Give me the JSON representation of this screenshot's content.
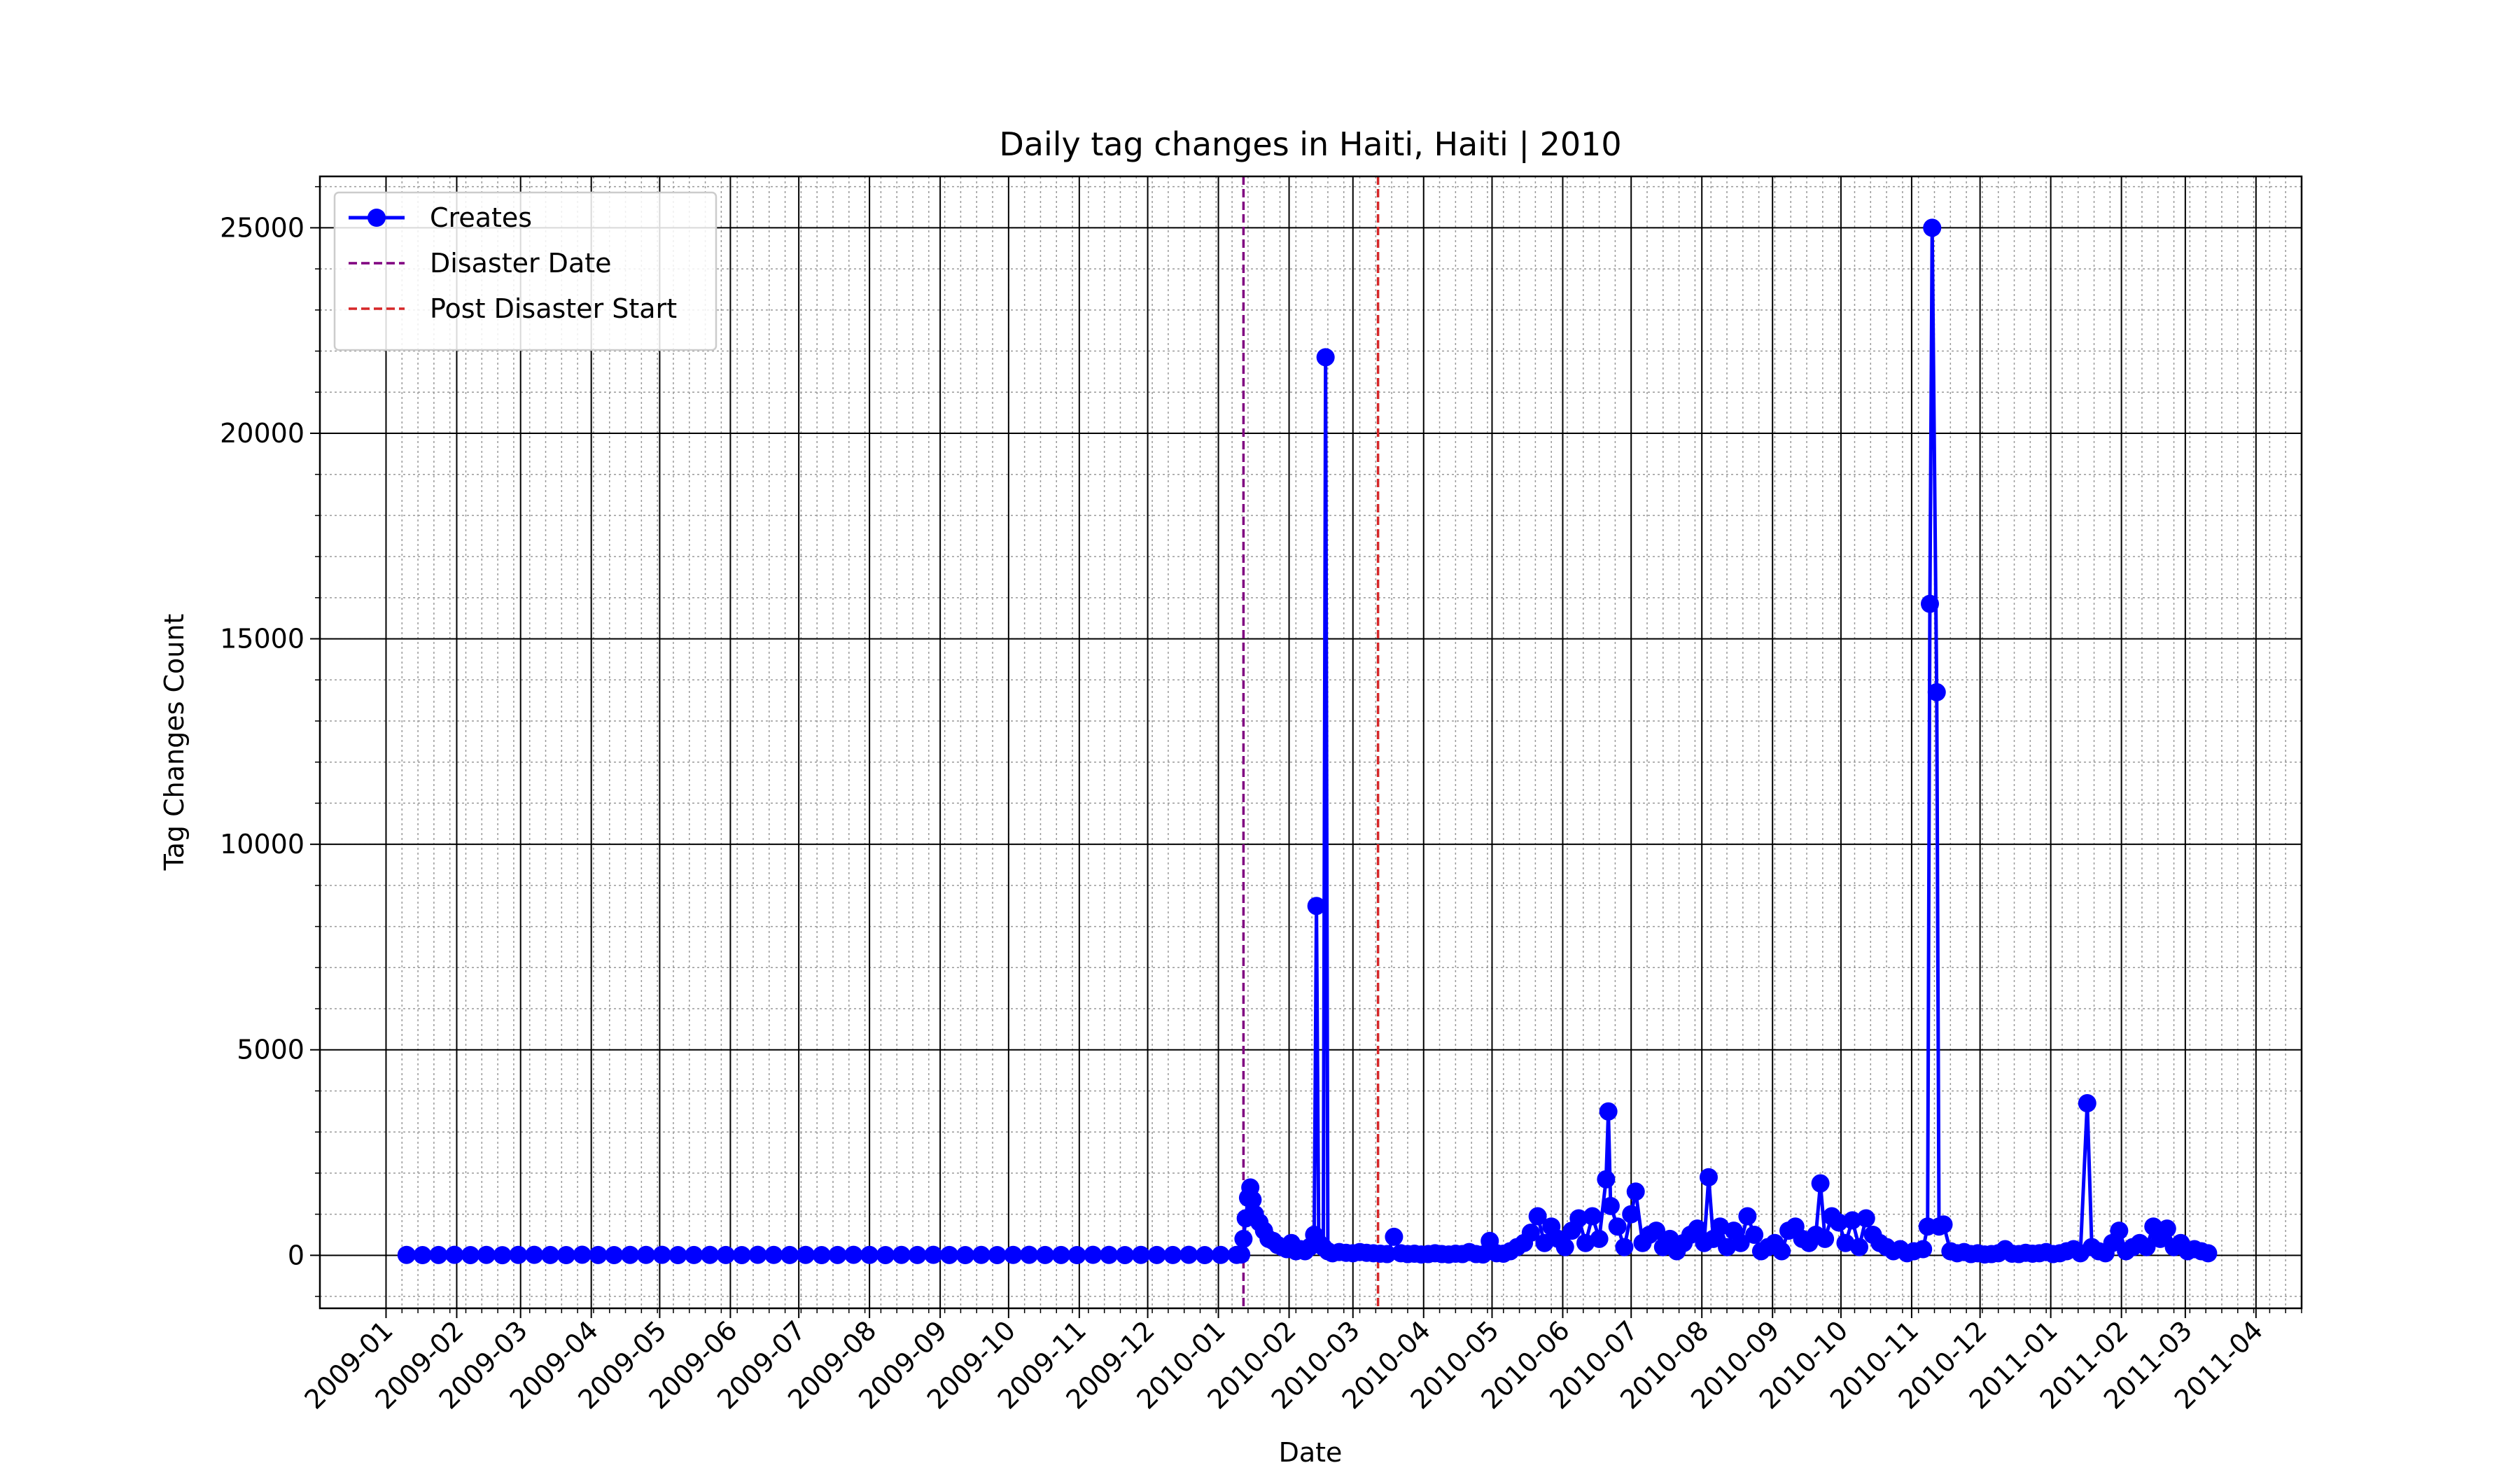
{
  "chart_data": {
    "type": "line",
    "title": "Daily tag changes in Haiti, Haiti | 2010",
    "x_label": "Date",
    "y_label": "Tag Changes Count",
    "x": [
      "2009-01-10",
      "2009-01-17",
      "2009-01-24",
      "2009-01-31",
      "2009-02-07",
      "2009-02-14",
      "2009-02-21",
      "2009-02-28",
      "2009-03-07",
      "2009-03-14",
      "2009-03-21",
      "2009-03-28",
      "2009-04-04",
      "2009-04-11",
      "2009-04-18",
      "2009-04-25",
      "2009-05-02",
      "2009-05-09",
      "2009-05-16",
      "2009-05-23",
      "2009-05-30",
      "2009-06-06",
      "2009-06-13",
      "2009-06-20",
      "2009-06-27",
      "2009-07-04",
      "2009-07-11",
      "2009-07-18",
      "2009-07-25",
      "2009-08-01",
      "2009-08-08",
      "2009-08-15",
      "2009-08-22",
      "2009-08-29",
      "2009-09-05",
      "2009-09-12",
      "2009-09-19",
      "2009-09-26",
      "2009-10-03",
      "2009-10-10",
      "2009-10-17",
      "2009-10-24",
      "2009-10-31",
      "2009-11-07",
      "2009-11-14",
      "2009-11-21",
      "2009-11-28",
      "2009-12-05",
      "2009-12-12",
      "2009-12-19",
      "2009-12-26",
      "2010-01-02",
      "2010-01-09",
      "2010-01-11",
      "2010-01-12",
      "2010-01-13",
      "2010-01-14",
      "2010-01-15",
      "2010-01-16",
      "2010-01-17",
      "2010-01-19",
      "2010-01-21",
      "2010-01-23",
      "2010-01-25",
      "2010-01-27",
      "2010-01-29",
      "2010-01-31",
      "2010-02-02",
      "2010-02-04",
      "2010-02-06",
      "2010-02-08",
      "2010-02-10",
      "2010-02-12",
      "2010-02-13",
      "2010-02-14",
      "2010-02-16",
      "2010-02-17",
      "2010-02-18",
      "2010-02-20",
      "2010-02-23",
      "2010-02-26",
      "2010-03-01",
      "2010-03-04",
      "2010-03-07",
      "2010-03-10",
      "2010-03-13",
      "2010-03-16",
      "2010-03-19",
      "2010-03-22",
      "2010-03-25",
      "2010-03-28",
      "2010-03-31",
      "2010-04-03",
      "2010-04-06",
      "2010-04-09",
      "2010-04-12",
      "2010-04-15",
      "2010-04-18",
      "2010-04-21",
      "2010-04-24",
      "2010-04-27",
      "2010-04-30",
      "2010-05-03",
      "2010-05-06",
      "2010-05-09",
      "2010-05-12",
      "2010-05-15",
      "2010-05-18",
      "2010-05-21",
      "2010-05-24",
      "2010-05-27",
      "2010-05-30",
      "2010-06-02",
      "2010-06-05",
      "2010-06-08",
      "2010-06-11",
      "2010-06-14",
      "2010-06-17",
      "2010-06-20",
      "2010-06-21",
      "2010-06-22",
      "2010-06-25",
      "2010-06-28",
      "2010-07-01",
      "2010-07-03",
      "2010-07-06",
      "2010-07-09",
      "2010-07-12",
      "2010-07-15",
      "2010-07-18",
      "2010-07-21",
      "2010-07-24",
      "2010-07-27",
      "2010-07-30",
      "2010-08-02",
      "2010-08-04",
      "2010-08-06",
      "2010-08-09",
      "2010-08-12",
      "2010-08-15",
      "2010-08-18",
      "2010-08-21",
      "2010-08-24",
      "2010-08-27",
      "2010-08-30",
      "2010-09-02",
      "2010-09-05",
      "2010-09-08",
      "2010-09-11",
      "2010-09-14",
      "2010-09-17",
      "2010-09-20",
      "2010-09-22",
      "2010-09-24",
      "2010-09-27",
      "2010-09-30",
      "2010-10-03",
      "2010-10-06",
      "2010-10-09",
      "2010-10-12",
      "2010-10-15",
      "2010-10-18",
      "2010-10-21",
      "2010-10-24",
      "2010-10-27",
      "2010-10-30",
      "2010-11-02",
      "2010-11-06",
      "2010-11-08",
      "2010-11-09",
      "2010-11-10",
      "2010-11-12",
      "2010-11-13",
      "2010-11-15",
      "2010-11-18",
      "2010-11-21",
      "2010-11-24",
      "2010-11-27",
      "2010-11-30",
      "2010-12-03",
      "2010-12-06",
      "2010-12-09",
      "2010-12-12",
      "2010-12-15",
      "2010-12-18",
      "2010-12-21",
      "2010-12-24",
      "2010-12-27",
      "2010-12-30",
      "2011-01-02",
      "2011-01-05",
      "2011-01-08",
      "2011-01-11",
      "2011-01-14",
      "2011-01-17",
      "2011-01-19",
      "2011-01-22",
      "2011-01-25",
      "2011-01-28",
      "2011-01-31",
      "2011-02-03",
      "2011-02-06",
      "2011-02-09",
      "2011-02-12",
      "2011-02-15",
      "2011-02-18",
      "2011-02-21",
      "2011-02-24",
      "2011-02-27",
      "2011-03-02",
      "2011-03-05",
      "2011-03-08",
      "2011-03-11"
    ],
    "series": [
      {
        "name": "Creates",
        "color": "#0000ff",
        "values": [
          10,
          5,
          8,
          12,
          6,
          10,
          4,
          9,
          11,
          7,
          5,
          14,
          8,
          6,
          10,
          9,
          12,
          5,
          7,
          10,
          8,
          6,
          11,
          9,
          7,
          10,
          5,
          8,
          12,
          9,
          6,
          10,
          7,
          11,
          8,
          5,
          9,
          6,
          10,
          12,
          7,
          8,
          5,
          11,
          9,
          6,
          10,
          8,
          7,
          12,
          5,
          9,
          10,
          20,
          400,
          900,
          1400,
          1650,
          1350,
          1000,
          800,
          600,
          400,
          350,
          250,
          200,
          150,
          300,
          100,
          150,
          100,
          200,
          500,
          8500,
          300,
          200,
          21850,
          100,
          50,
          80,
          60,
          50,
          80,
          60,
          50,
          40,
          30,
          450,
          50,
          30,
          40,
          20,
          30,
          50,
          30,
          20,
          40,
          30,
          80,
          30,
          20,
          350,
          50,
          40,
          100,
          200,
          300,
          550,
          950,
          300,
          700,
          400,
          200,
          600,
          900,
          300,
          950,
          400,
          1850,
          3500,
          1200,
          700,
          200,
          1000,
          1550,
          300,
          500,
          600,
          200,
          400,
          100,
          300,
          500,
          650,
          300,
          1900,
          400,
          700,
          200,
          600,
          300,
          950,
          500,
          100,
          200,
          300,
          100,
          600,
          700,
          400,
          300,
          500,
          1750,
          400,
          950,
          800,
          300,
          850,
          200,
          900,
          500,
          300,
          200,
          100,
          150,
          50,
          100,
          150,
          700,
          15850,
          25000,
          13700,
          700,
          750,
          100,
          50,
          80,
          30,
          50,
          20,
          30,
          50,
          150,
          40,
          30,
          60,
          40,
          50,
          80,
          30,
          50,
          100,
          150,
          50,
          3700,
          200,
          100,
          50,
          300,
          600,
          100,
          200,
          300,
          200,
          700,
          400,
          650,
          200,
          300,
          100,
          150,
          100,
          50
        ]
      }
    ],
    "vlines": [
      {
        "name": "Disaster Date",
        "x": "2010-01-12",
        "color": "#800080"
      },
      {
        "name": "Post Disaster Start",
        "x": "2010-03-12",
        "color": "#d62728"
      }
    ],
    "xlim": [
      "2008-12-03",
      "2011-04-21"
    ],
    "xticks": [
      "2009-01",
      "2009-02",
      "2009-03",
      "2009-04",
      "2009-05",
      "2009-06",
      "2009-07",
      "2009-08",
      "2009-09",
      "2009-10",
      "2009-11",
      "2009-12",
      "2010-01",
      "2010-02",
      "2010-03",
      "2010-04",
      "2010-05",
      "2010-06",
      "2010-07",
      "2010-08",
      "2010-09",
      "2010-10",
      "2010-11",
      "2010-12",
      "2011-01",
      "2011-02",
      "2011-03",
      "2011-04"
    ],
    "ylim": [
      -1289,
      26250
    ],
    "yticks": [
      0,
      5000,
      10000,
      15000,
      20000,
      25000
    ],
    "grid": true,
    "minor_grid": true,
    "legend": "upper left"
  }
}
